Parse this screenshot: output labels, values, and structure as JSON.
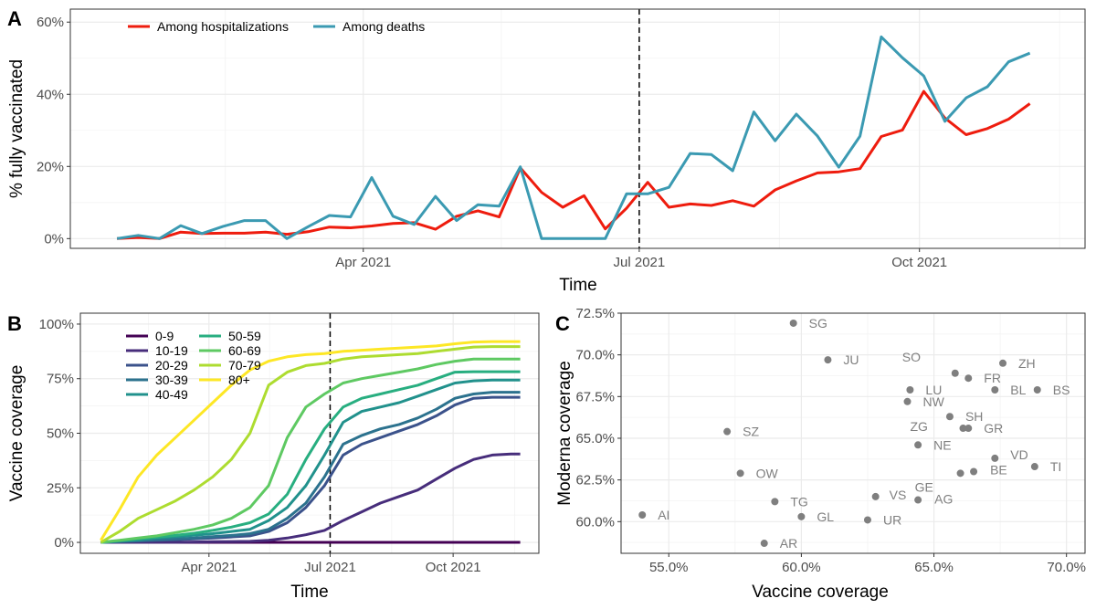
{
  "chart_data": [
    {
      "panel": "A",
      "type": "line",
      "xlabel": "Time",
      "ylabel": "% fully vaccinated",
      "ylim": [
        0,
        60
      ],
      "yticks": [
        "0%",
        "20%",
        "40%",
        "60%"
      ],
      "ytick_values": [
        0,
        20,
        40,
        60
      ],
      "xticks": [
        "Apr 2021",
        "Jul 2021",
        "Oct 2021"
      ],
      "xtick_weeks": [
        11.6,
        24.6,
        37.8
      ],
      "xlim_weeks": [
        -2.2,
        45.6
      ],
      "vline_week": 24.6,
      "legend_position": "top-left",
      "x_unit": "weeks since 2021-01-11",
      "series": [
        {
          "name": "Among hospitalizations",
          "color": "#ee1c0e",
          "values": [
            0,
            0.3,
            0,
            1.8,
            1.4,
            1.5,
            1.5,
            1.8,
            1.2,
            1.9,
            3.2,
            3.0,
            3.5,
            4.2,
            4.4,
            2.6,
            6.2,
            7.7,
            6.0,
            19.6,
            12.8,
            8.7,
            11.9,
            2.7,
            8.4,
            15.6,
            8.7,
            9.6,
            9.2,
            10.5,
            9.0,
            13.5,
            16.0,
            18.2,
            18.5,
            19.4,
            28.3,
            30.1,
            40.8,
            33.4,
            28.8,
            30.5,
            33.1,
            37.4
          ]
        },
        {
          "name": "Among deaths",
          "color": "#3b9ab2",
          "values": [
            0,
            0.9,
            0,
            3.6,
            1.4,
            3.4,
            5.0,
            5.0,
            0,
            3.3,
            6.4,
            6.0,
            16.9,
            6.2,
            3.9,
            11.7,
            5.0,
            9.4,
            9.0,
            19.9,
            0,
            0,
            0,
            0,
            12.4,
            12.4,
            14.2,
            23.6,
            23.3,
            18.8,
            35.1,
            27.1,
            34.5,
            28.4,
            19.8,
            28.4,
            55.9,
            50.1,
            45.1,
            32.5,
            39.0,
            42.1,
            49.0,
            51.4
          ]
        }
      ]
    },
    {
      "panel": "B",
      "type": "line",
      "xlabel": "Time",
      "ylabel": "Vaccine coverage",
      "ylim": [
        0,
        100
      ],
      "yticks": [
        "0%",
        "25%",
        "50%",
        "75%",
        "100%"
      ],
      "ytick_values": [
        0,
        25,
        50,
        75,
        100
      ],
      "xticks": [
        "Apr 2021",
        "Jul 2021",
        "Oct 2021"
      ],
      "xtick_weeks": [
        11.6,
        24.6,
        37.8
      ],
      "xlim_weeks": [
        -2.2,
        47.0
      ],
      "vline_week": 24.6,
      "legend_position": "top-left",
      "x_weeks": [
        0,
        2,
        4,
        6,
        8,
        10,
        12,
        14,
        16,
        18,
        20,
        22,
        24,
        26,
        28,
        30,
        32,
        34,
        36,
        38,
        40,
        42,
        44,
        45
      ],
      "series": [
        {
          "name": "0-9",
          "color": "#440154",
          "values": [
            0,
            0,
            0,
            0,
            0,
            0,
            0,
            0,
            0,
            0,
            0,
            0,
            0,
            0,
            0,
            0,
            0,
            0,
            0,
            0,
            0,
            0,
            0,
            0
          ]
        },
        {
          "name": "10-19",
          "color": "#472d7b",
          "values": [
            0,
            0,
            0,
            0,
            0,
            0.2,
            0.3,
            0.4,
            0.5,
            1,
            2,
            3.5,
            5.5,
            10,
            14,
            18,
            21,
            24,
            29,
            34,
            38,
            40,
            40.5,
            40.5
          ]
        },
        {
          "name": "20-29",
          "color": "#3b528b",
          "values": [
            0,
            0.3,
            0.6,
            1,
            1.2,
            1.6,
            2,
            2.5,
            3,
            5,
            9,
            16,
            26,
            40,
            45,
            48,
            51,
            54,
            58,
            63,
            66,
            66.5,
            66.5,
            66.5
          ]
        },
        {
          "name": "30-39",
          "color": "#2c728e",
          "values": [
            0,
            0.4,
            0.8,
            1.2,
            1.6,
            2,
            2.6,
            3.2,
            4,
            6,
            11,
            18,
            30,
            45,
            49,
            52,
            54,
            57,
            61,
            66,
            68,
            68.8,
            68.8,
            68.8
          ]
        },
        {
          "name": "40-49",
          "color": "#21918c",
          "values": [
            0,
            0.6,
            1.2,
            2,
            2.6,
            3.3,
            4,
            5,
            6,
            10,
            16,
            26,
            40,
            55,
            60,
            62,
            64,
            67,
            70,
            73,
            74,
            74.4,
            74.4,
            74.4
          ]
        },
        {
          "name": "50-59",
          "color": "#28ae80",
          "values": [
            0,
            0.8,
            1.6,
            2.4,
            3.2,
            4.2,
            5.5,
            7,
            9,
            13,
            22,
            38,
            52,
            62,
            66,
            68,
            70,
            72,
            75,
            78,
            78.2,
            78.2,
            78.2,
            78.2
          ]
        },
        {
          "name": "60-69",
          "color": "#5ec962",
          "values": [
            0,
            1,
            2,
            3,
            4.5,
            6,
            8,
            11,
            16,
            26,
            48,
            62,
            68,
            73,
            75,
            76.5,
            78,
            79.5,
            81.5,
            83,
            84,
            84,
            84,
            84
          ]
        },
        {
          "name": "70-79",
          "color": "#addc30",
          "values": [
            0,
            5,
            11,
            15,
            19,
            24,
            30,
            38,
            50,
            72,
            78,
            81,
            82,
            84,
            85,
            85.5,
            86,
            86.5,
            87.5,
            88.5,
            89.5,
            89.7,
            89.7,
            89.7
          ]
        },
        {
          "name": "80+",
          "color": "#fde725",
          "values": [
            1,
            15,
            30,
            40,
            48,
            56,
            64,
            72,
            79,
            83,
            85,
            86,
            86.5,
            87.5,
            88,
            88.5,
            89,
            89.5,
            90,
            91,
            91.8,
            92,
            92,
            92
          ]
        }
      ]
    },
    {
      "panel": "C",
      "type": "scatter",
      "xlabel": "Vaccine coverage",
      "ylabel": "Moderna coverage",
      "xlim": [
        53.2,
        70.7
      ],
      "ylim": [
        58.1,
        72.5
      ],
      "xticks": [
        "55.0%",
        "60.0%",
        "65.0%",
        "70.0%"
      ],
      "xtick_values": [
        55,
        60,
        65,
        70
      ],
      "yticks": [
        "60.0%",
        "62.5%",
        "65.0%",
        "67.5%",
        "70.0%",
        "72.5%"
      ],
      "ytick_values": [
        60,
        62.5,
        65,
        67.5,
        70,
        72.5
      ],
      "point_color": "#7f7f7f",
      "points": [
        {
          "label": "SG",
          "x": 59.7,
          "y": 71.9
        },
        {
          "label": "JU",
          "x": 61.0,
          "y": 69.7
        },
        {
          "label": "SO",
          "x": 65.8,
          "y": 68.9
        },
        {
          "label": "ZH",
          "x": 67.6,
          "y": 69.5
        },
        {
          "label": "FR",
          "x": 66.3,
          "y": 68.6
        },
        {
          "label": "LU",
          "x": 64.1,
          "y": 67.9
        },
        {
          "label": "BL",
          "x": 67.3,
          "y": 67.9
        },
        {
          "label": "BS",
          "x": 68.9,
          "y": 67.9
        },
        {
          "label": "NW",
          "x": 64.0,
          "y": 67.2
        },
        {
          "label": "SH",
          "x": 65.6,
          "y": 66.3
        },
        {
          "label": "ZG",
          "x": 66.1,
          "y": 65.6
        },
        {
          "label": "GR",
          "x": 66.3,
          "y": 65.6
        },
        {
          "label": "SZ",
          "x": 57.2,
          "y": 65.4
        },
        {
          "label": "NE",
          "x": 64.4,
          "y": 64.6
        },
        {
          "label": "VD",
          "x": 67.3,
          "y": 63.8
        },
        {
          "label": "TI",
          "x": 68.8,
          "y": 63.3
        },
        {
          "label": "BE",
          "x": 66.5,
          "y": 63.0
        },
        {
          "label": "GE",
          "x": 66.0,
          "y": 62.9
        },
        {
          "label": "OW",
          "x": 57.7,
          "y": 62.9
        },
        {
          "label": "VS",
          "x": 62.8,
          "y": 61.5
        },
        {
          "label": "AG",
          "x": 64.4,
          "y": 61.3
        },
        {
          "label": "TG",
          "x": 59.0,
          "y": 61.2
        },
        {
          "label": "AI",
          "x": 54.0,
          "y": 60.4
        },
        {
          "label": "GL",
          "x": 60.0,
          "y": 60.3
        },
        {
          "label": "UR",
          "x": 62.5,
          "y": 60.1
        },
        {
          "label": "AR",
          "x": 58.6,
          "y": 58.7
        }
      ]
    }
  ],
  "panels": {
    "a_tag": "A",
    "b_tag": "B",
    "c_tag": "C"
  }
}
